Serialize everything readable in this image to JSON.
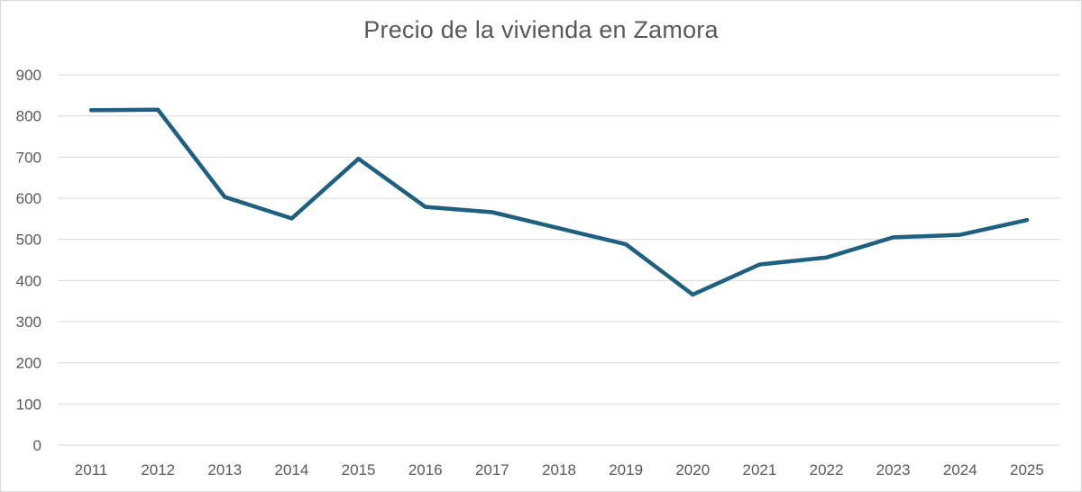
{
  "chart_data": {
    "type": "line",
    "title": "Precio de la vivienda en Zamora",
    "xlabel": "",
    "ylabel": "",
    "categories": [
      "2011",
      "2012",
      "2013",
      "2014",
      "2015",
      "2016",
      "2017",
      "2018",
      "2019",
      "2020",
      "2021",
      "2022",
      "2023",
      "2024",
      "2025"
    ],
    "series": [
      {
        "name": "",
        "values": [
          814,
          815,
          603,
          551,
          696,
          579,
          566,
          527,
          488,
          366,
          439,
          456,
          505,
          511,
          547
        ]
      }
    ],
    "ylim": [
      0,
      900
    ],
    "yticks": [
      "0",
      "100",
      "200",
      "300",
      "400",
      "500",
      "600",
      "700",
      "800",
      "900"
    ],
    "grid": true,
    "legend": "none",
    "colors": {
      "line": "#1f5f7f",
      "grid": "#d9d9d9",
      "text": "#595959"
    }
  }
}
